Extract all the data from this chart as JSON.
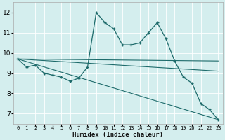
{
  "xlabel": "Humidex (Indice chaleur)",
  "xlim": [
    -0.5,
    23.5
  ],
  "ylim": [
    6.5,
    12.5
  ],
  "yticks": [
    7,
    8,
    9,
    10,
    11,
    12
  ],
  "xticks": [
    0,
    1,
    2,
    3,
    4,
    5,
    6,
    7,
    8,
    9,
    10,
    11,
    12,
    13,
    14,
    15,
    16,
    17,
    18,
    19,
    20,
    21,
    22,
    23
  ],
  "bg_color": "#d4eeee",
  "grid_color": "#b8d8d8",
  "line_color": "#1e6b6b",
  "lines": [
    {
      "x": [
        0,
        1,
        2,
        3,
        4,
        5,
        6,
        7,
        8,
        9,
        10,
        11,
        12,
        13,
        14,
        15,
        16,
        17,
        18,
        19,
        20,
        21,
        22,
        23
      ],
      "y": [
        9.7,
        9.3,
        9.4,
        9.0,
        8.9,
        8.8,
        8.6,
        8.75,
        9.3,
        12.0,
        11.5,
        11.2,
        10.4,
        10.4,
        10.5,
        11.0,
        11.5,
        10.7,
        9.6,
        8.8,
        8.5,
        7.5,
        7.2,
        6.7
      ],
      "marker": "+"
    },
    {
      "x": [
        0,
        23
      ],
      "y": [
        9.7,
        9.6
      ],
      "marker": null
    },
    {
      "x": [
        0,
        23
      ],
      "y": [
        9.7,
        9.1
      ],
      "marker": null
    },
    {
      "x": [
        0,
        23
      ],
      "y": [
        9.7,
        6.7
      ],
      "marker": null
    }
  ]
}
